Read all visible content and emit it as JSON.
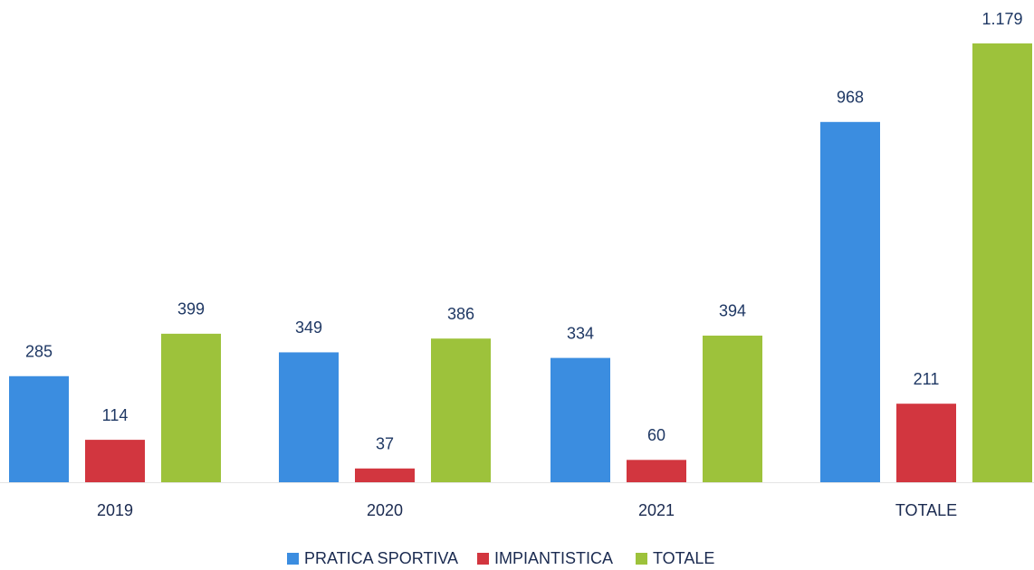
{
  "chart_data": {
    "type": "bar",
    "categories": [
      "2019",
      "2020",
      "2021",
      "TOTALE"
    ],
    "series": [
      {
        "name": "PRATICA SPORTIVA",
        "color": "#3b8de0",
        "values": [
          285,
          349,
          334,
          968
        ]
      },
      {
        "name": "IMPIANTISTICA",
        "color": "#d2363f",
        "values": [
          114,
          37,
          60,
          211
        ]
      },
      {
        "name": "TOTALE",
        "color": "#9dc23b",
        "values": [
          399,
          386,
          394,
          1179
        ],
        "value_labels": [
          "399",
          "386",
          "394",
          "1.179"
        ]
      }
    ]
  }
}
